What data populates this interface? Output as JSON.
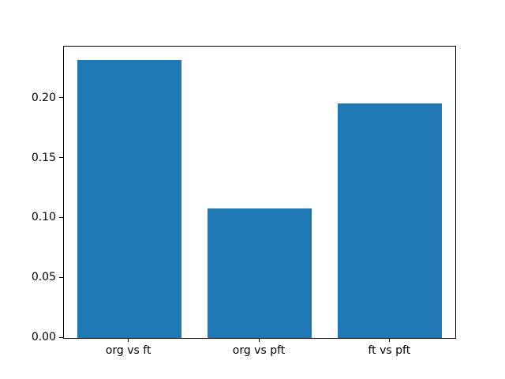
{
  "chart_data": {
    "type": "bar",
    "categories": [
      "org vs ft",
      "org vs pft",
      "ft vs pft"
    ],
    "values": [
      0.232,
      0.108,
      0.196
    ],
    "title": "",
    "xlabel": "",
    "ylabel": "",
    "ylim": [
      0,
      0.2436
    ],
    "yticks": [
      0.0,
      0.05,
      0.1,
      0.15,
      0.2
    ],
    "ytick_labels": [
      "0.00",
      "0.05",
      "0.10",
      "0.15",
      "0.20"
    ],
    "bar_color": "#1f77b4",
    "bar_width_fraction": 0.8,
    "grid": false,
    "legend": null,
    "spine_color": "#000000",
    "background_color": "#ffffff"
  }
}
